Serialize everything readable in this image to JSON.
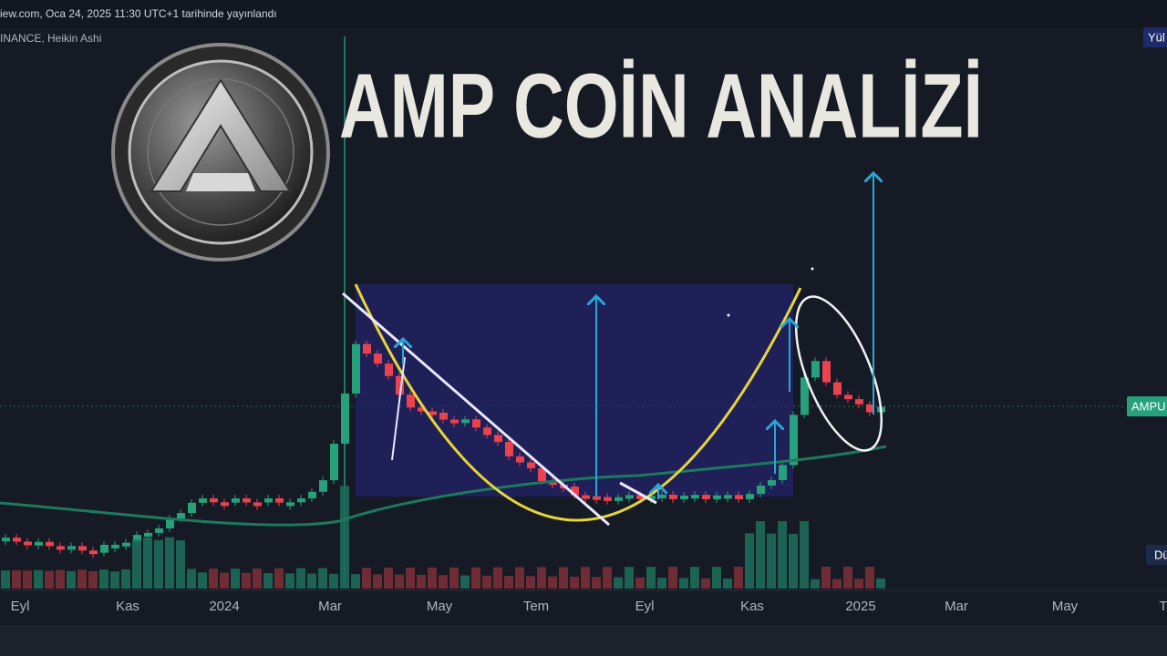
{
  "header": {
    "source": "iew.com, Oca 24, 2025 11:30 UTC+1 tarihinde yayınlandı",
    "symbol": "INANCE, Heikin Ashi"
  },
  "title": "AMP COİN ANALİZİ",
  "x_axis": {
    "labels": [
      "Eyl",
      "Kas",
      "2024",
      "Mar",
      "May",
      "Tem",
      "Eyl",
      "Kas",
      "2025",
      "Mar",
      "May",
      "T"
    ]
  },
  "badges": {
    "top_right": "Yül",
    "price": "AMPU",
    "bottom_right": "Dü"
  }
}
